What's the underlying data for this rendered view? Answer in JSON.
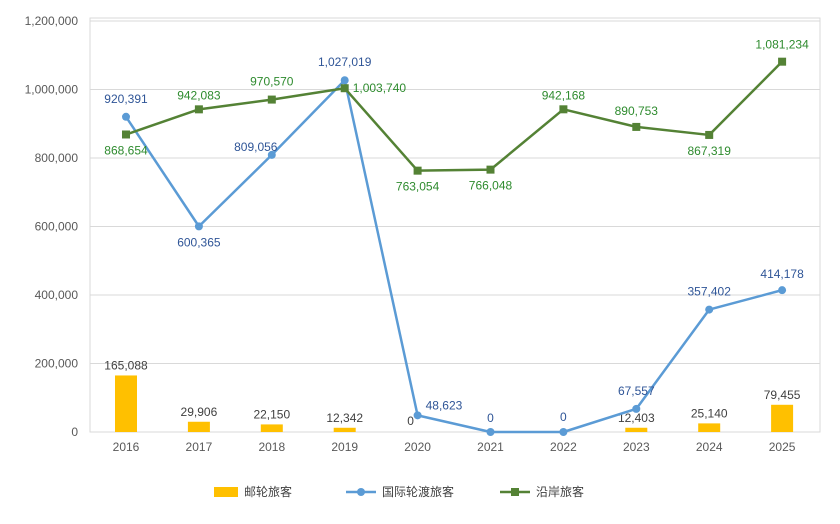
{
  "chart_data": {
    "type": "bar+line",
    "categories": [
      "2016",
      "2017",
      "2018",
      "2019",
      "2020",
      "2021",
      "2022",
      "2023",
      "2024",
      "2025"
    ],
    "ylim": [
      0,
      1200000
    ],
    "yticks": [
      "0",
      "200,000",
      "400,000",
      "600,000",
      "800,000",
      "1,000,000",
      "1,200,000"
    ],
    "ytick_values": [
      0,
      200000,
      400000,
      600000,
      800000,
      1000000,
      1200000
    ],
    "grid": true,
    "legend_position": "bottom",
    "series": [
      {
        "name": "邮轮旅客",
        "kind": "bar",
        "color": "#FFC000",
        "label_color": "#404040",
        "values": [
          165088,
          29906,
          22150,
          12342,
          0,
          0,
          0,
          12403,
          25140,
          79455
        ],
        "labels": [
          "165,088",
          "29,906",
          "22,150",
          "12,342",
          "0",
          "",
          "",
          "12,403",
          "25,140",
          "79,455"
        ]
      },
      {
        "name": "国际轮渡旅客",
        "kind": "line",
        "color": "#5B9BD5",
        "label_color": "#2F5597",
        "values": [
          920391,
          600365,
          809056,
          1027019,
          48623,
          0,
          0,
          67557,
          357402,
          414178
        ],
        "labels": [
          "920,391",
          "600,365",
          "809,056",
          "1,027,019",
          "48,623",
          "0",
          "0",
          "67,557",
          "357,402",
          "414,178"
        ]
      },
      {
        "name": "沿岸旅客",
        "kind": "line",
        "color": "#548235",
        "label_color": "#2E8B2E",
        "values": [
          868654,
          942083,
          970570,
          1003740,
          763054,
          766048,
          942168,
          890753,
          867319,
          1081234
        ],
        "labels": [
          "868,654",
          "942,083",
          "970,570",
          "1,003,740",
          "763,054",
          "766,048",
          "942,168",
          "890,753",
          "867,319",
          "1,081,234"
        ]
      }
    ]
  }
}
